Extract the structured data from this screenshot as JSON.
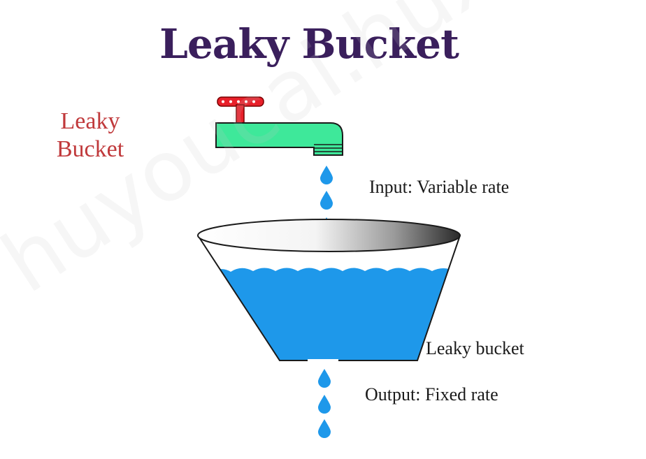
{
  "title": "Leaky Bucket",
  "side_label": {
    "line1": "Leaky",
    "line2": "Bucket"
  },
  "captions": {
    "input": "Input: Variable rate",
    "bucket": "Leaky bucket",
    "output": "Output: Fixed rate"
  },
  "colors": {
    "title": "#3a1f5c",
    "side_label": "#c0393b",
    "caption": "#1a1a1a",
    "faucet_body": "#3ee89a",
    "faucet_handle": "#e8202a",
    "water": "#1e98ea",
    "drop": "#1e98ea"
  },
  "icons": {
    "faucet": "faucet-icon",
    "drop": "water-drop-icon",
    "bucket": "bucket-icon"
  },
  "watermark": "huyoucai.huxin"
}
